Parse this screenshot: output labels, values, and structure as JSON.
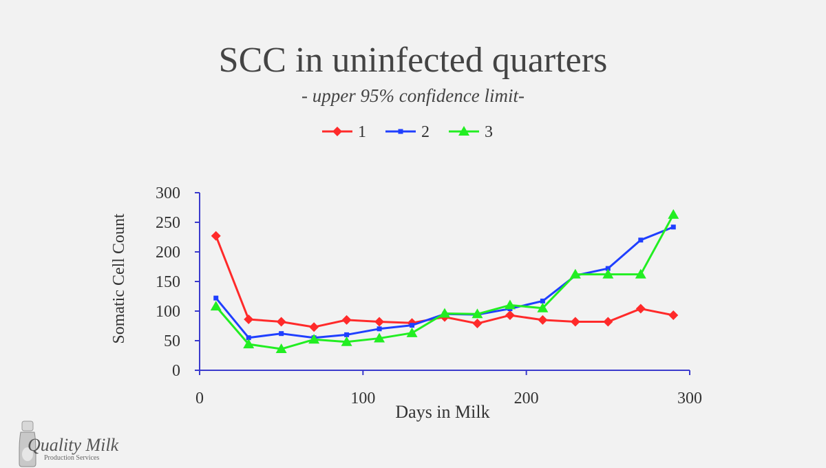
{
  "chart_data": {
    "type": "line",
    "title": "SCC in uninfected  quarters",
    "subtitle": "- upper 95% confidence limit-",
    "xlabel": "Days in Milk",
    "ylabel": "Somatic Cell Count",
    "xlim": [
      0,
      300
    ],
    "ylim": [
      0,
      300
    ],
    "xticks": [
      0,
      100,
      200,
      300
    ],
    "yticks": [
      0,
      50,
      100,
      150,
      200,
      250,
      300
    ],
    "grid": false,
    "legend_position": "top-center",
    "series": [
      {
        "name": "1",
        "color": "#ff2a2a",
        "marker": "diamond",
        "x": [
          10,
          30,
          50,
          70,
          90,
          110,
          130,
          150,
          170,
          190,
          210,
          230,
          250,
          270,
          290
        ],
        "y": [
          227,
          86,
          82,
          73,
          85,
          82,
          80,
          90,
          79,
          93,
          85,
          82,
          82,
          104,
          93
        ]
      },
      {
        "name": "2",
        "color": "#1f3fff",
        "marker": "square",
        "x": [
          10,
          30,
          50,
          70,
          90,
          110,
          130,
          150,
          170,
          190,
          210,
          230,
          250,
          270,
          290
        ],
        "y": [
          122,
          55,
          62,
          55,
          60,
          70,
          76,
          95,
          94,
          104,
          117,
          160,
          172,
          220,
          242
        ]
      },
      {
        "name": "3",
        "color": "#22ee22",
        "marker": "triangle",
        "x": [
          10,
          30,
          50,
          70,
          90,
          110,
          130,
          150,
          170,
          190,
          210,
          230,
          250,
          270,
          290
        ],
        "y": [
          108,
          44,
          36,
          52,
          48,
          54,
          63,
          96,
          95,
          110,
          105,
          162,
          162,
          162,
          263
        ]
      }
    ]
  },
  "logo": {
    "main": "Quality Milk",
    "sub": "Production Services"
  }
}
